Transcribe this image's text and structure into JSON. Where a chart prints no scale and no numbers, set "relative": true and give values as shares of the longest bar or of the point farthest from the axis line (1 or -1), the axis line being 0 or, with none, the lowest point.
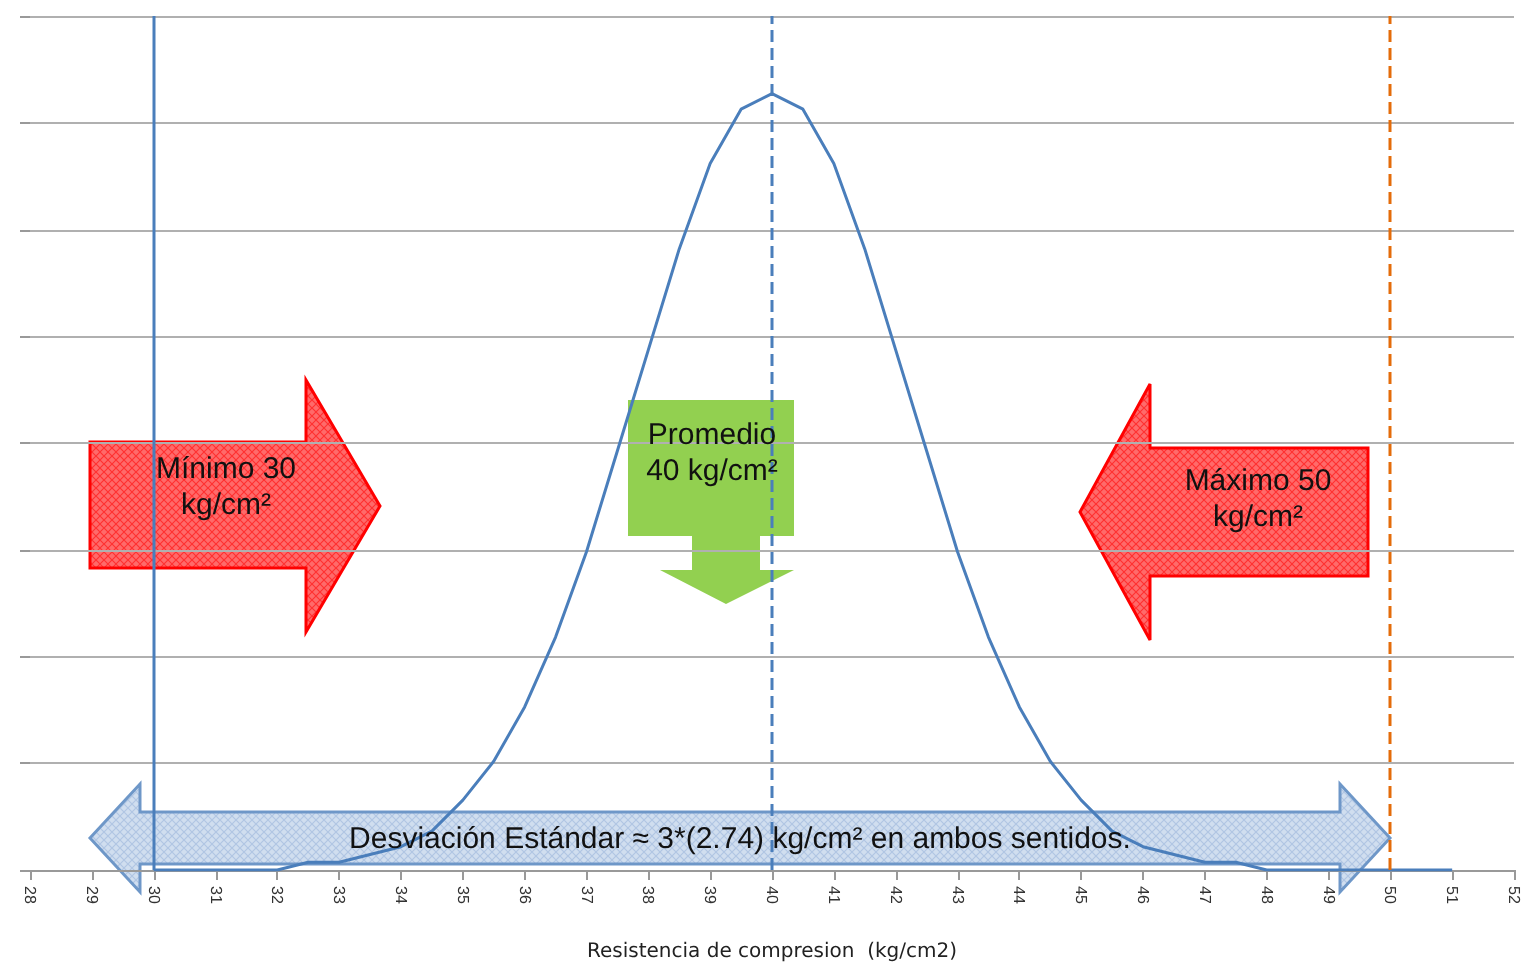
{
  "chart_data": {
    "type": "line",
    "relative": true,
    "xlabel": "Resistencia de compresion  (kg/cm2)",
    "xlim": [
      28,
      52
    ],
    "xticks": [
      28,
      29,
      30,
      31,
      32,
      33,
      34,
      35,
      36,
      37,
      38,
      39,
      40,
      41,
      42,
      43,
      44,
      45,
      46,
      47,
      48,
      49,
      50,
      51,
      52
    ],
    "x": [
      30,
      30.5,
      31,
      31.5,
      32,
      32.5,
      33,
      33.5,
      34,
      34.5,
      35,
      35.5,
      36,
      36.5,
      37,
      37.5,
      38,
      38.5,
      39,
      39.5,
      40,
      40.5,
      41,
      41.5,
      42,
      42.5,
      43,
      43.5,
      44,
      44.5,
      45,
      45.5,
      46,
      46.5,
      47,
      47.5,
      48,
      49,
      50,
      51
    ],
    "series": [
      {
        "color": "#4a7ebb",
        "values": [
          0,
          0,
          0,
          0,
          0,
          0.01,
          0.01,
          0.02,
          0.03,
          0.05,
          0.09,
          0.14,
          0.21,
          0.3,
          0.41,
          0.54,
          0.67,
          0.8,
          0.91,
          0.98,
          1,
          0.98,
          0.91,
          0.8,
          0.67,
          0.54,
          0.41,
          0.3,
          0.21,
          0.14,
          0.09,
          0.05,
          0.03,
          0.02,
          0.01,
          0.01,
          0,
          0,
          0,
          0
        ]
      }
    ],
    "ref_lines": [
      {
        "axis": "x",
        "value": 30,
        "color": "#4a7ebb",
        "line_style": "solid"
      },
      {
        "axis": "x",
        "value": 40,
        "color": "#4a7ebb",
        "line_style": "dashed"
      },
      {
        "axis": "x",
        "value": 50,
        "color": "#e46c0a",
        "line_style": "dashed"
      }
    ],
    "annotations": [
      "Mínimo 30 kg/cm²",
      "Promedio 40 kg/cm²",
      "Máximo 50 kg/cm²",
      "Desviación Estándar ≈ 3*(2.74) kg/cm² en ambos sentidos."
    ],
    "grid": "y",
    "marker": "none",
    "line_style": "solid"
  }
}
